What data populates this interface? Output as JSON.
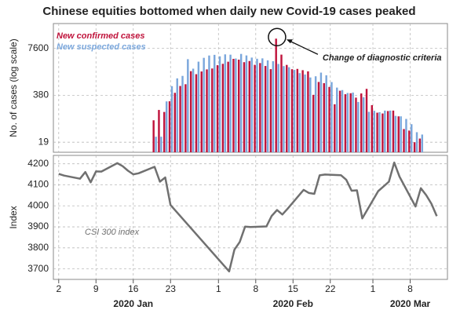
{
  "chart_data": [
    {
      "type": "bar",
      "title": "Chinese equities bottomed when daily new Covid-19 cases peaked",
      "ylabel": "No. of cases (log scale)",
      "annotation": "Change of diagnostic criteria",
      "annotation_x": "2020-02-12",
      "x": [
        "2020-01-20",
        "2020-01-21",
        "2020-01-22",
        "2020-01-23",
        "2020-01-24",
        "2020-01-25",
        "2020-01-26",
        "2020-01-27",
        "2020-01-28",
        "2020-01-29",
        "2020-01-30",
        "2020-01-31",
        "2020-02-01",
        "2020-02-02",
        "2020-02-03",
        "2020-02-04",
        "2020-02-05",
        "2020-02-06",
        "2020-02-07",
        "2020-02-08",
        "2020-02-09",
        "2020-02-10",
        "2020-02-11",
        "2020-02-12",
        "2020-02-13",
        "2020-02-14",
        "2020-02-15",
        "2020-02-16",
        "2020-02-17",
        "2020-02-18",
        "2020-02-19",
        "2020-02-20",
        "2020-02-21",
        "2020-02-22",
        "2020-02-23",
        "2020-02-24",
        "2020-02-25",
        "2020-02-26",
        "2020-02-27",
        "2020-02-28",
        "2020-02-29",
        "2020-03-01",
        "2020-03-02",
        "2020-03-03",
        "2020-03-04",
        "2020-03-05",
        "2020-03-06",
        "2020-03-07",
        "2020-03-08",
        "2020-03-09",
        "2020-03-10"
      ],
      "series": [
        {
          "name": "New confirmed cases",
          "color": "#c0143c",
          "values": [
            77,
            149,
            131,
            259,
            444,
            688,
            769,
            1771,
            1459,
            1737,
            1982,
            2102,
            2590,
            2829,
            3235,
            3887,
            3694,
            3143,
            3385,
            2652,
            2973,
            2467,
            2015,
            14108,
            5090,
            2641,
            2008,
            2048,
            1886,
            1749,
            391,
            889,
            823,
            648,
            214,
            508,
            406,
            433,
            327,
            427,
            573,
            202,
            125,
            119,
            139,
            143,
            99,
            44,
            40,
            19,
            24
          ]
        },
        {
          "name": "New suspected cases",
          "color": "#7ba7dc",
          "values": [
            27,
            27,
            257,
            680,
            1118,
            1309,
            3806,
            2077,
            3248,
            4148,
            4812,
            5019,
            4562,
            5173,
            5072,
            3971,
            5328,
            4833,
            4214,
            3916,
            4008,
            3536,
            3342,
            2807,
            2450,
            2277,
            1918,
            1563,
            1432,
            1185,
            1277,
            1614,
            1361,
            882,
            620,
            530,
            439,
            452,
            248,
            335,
            132,
            141,
            129,
            143,
            143,
            102,
            99,
            84,
            60,
            36,
            31
          ]
        }
      ],
      "xlim": [
        "2020-01-01",
        "2020-03-15"
      ],
      "ylim": [
        10,
        37000
      ],
      "log_scale": true,
      "yticks": [
        19,
        380,
        7600
      ],
      "grid": true,
      "legend": "upper left"
    },
    {
      "type": "line",
      "ylabel": "Index",
      "x": [
        "2020-01-02",
        "2020-01-03",
        "2020-01-06",
        "2020-01-07",
        "2020-01-08",
        "2020-01-09",
        "2020-01-10",
        "2020-01-13",
        "2020-01-14",
        "2020-01-15",
        "2020-01-16",
        "2020-01-17",
        "2020-01-20",
        "2020-01-21",
        "2020-01-22",
        "2020-01-23",
        "2020-02-03",
        "2020-02-04",
        "2020-02-05",
        "2020-02-06",
        "2020-02-07",
        "2020-02-10",
        "2020-02-11",
        "2020-02-12",
        "2020-02-13",
        "2020-02-14",
        "2020-02-17",
        "2020-02-18",
        "2020-02-19",
        "2020-02-20",
        "2020-02-21",
        "2020-02-24",
        "2020-02-25",
        "2020-02-26",
        "2020-02-27",
        "2020-02-28",
        "2020-03-02",
        "2020-03-03",
        "2020-03-04",
        "2020-03-05",
        "2020-03-06",
        "2020-03-09",
        "2020-03-10",
        "2020-03-11",
        "2020-03-12",
        "2020-03-13"
      ],
      "series": [
        {
          "name": "CSI 300 index",
          "color": "#707070",
          "values": [
            4152,
            4144,
            4129,
            4161,
            4112,
            4164,
            4163,
            4203,
            4189,
            4167,
            4150,
            4155,
            4186,
            4115,
            4135,
            4004,
            3688,
            3791,
            3828,
            3901,
            3899,
            3902,
            3952,
            3980,
            3959,
            3987,
            4076,
            4061,
            4057,
            4145,
            4149,
            4146,
            4124,
            4072,
            4074,
            3940,
            4070,
            4092,
            4115,
            4206,
            4139,
            3997,
            4084,
            4051,
            4010,
            3951
          ]
        }
      ],
      "xlim": [
        "2020-01-01",
        "2020-03-15"
      ],
      "ylim": [
        3650,
        4240
      ],
      "yticks": [
        3700,
        3800,
        3900,
        4000,
        4100,
        4200
      ],
      "xticks": [
        {
          "value": "2020-01-02",
          "label": "2"
        },
        {
          "value": "2020-01-09",
          "label": "9"
        },
        {
          "value": "2020-01-16",
          "label": "16"
        },
        {
          "value": "2020-01-23",
          "label": "23"
        },
        {
          "value": "2020-02-01",
          "label": "1"
        },
        {
          "value": "2020-02-08",
          "label": "8"
        },
        {
          "value": "2020-02-15",
          "label": "15"
        },
        {
          "value": "2020-02-22",
          "label": "22"
        },
        {
          "value": "2020-03-01",
          "label": "1"
        },
        {
          "value": "2020-03-08",
          "label": "8"
        }
      ],
      "month_labels": [
        {
          "value": "2020-01-16",
          "label": "2020 Jan"
        },
        {
          "value": "2020-02-15",
          "label": "2020 Feb"
        },
        {
          "value": "2020-03-08",
          "label": "2020 Mar"
        }
      ],
      "grid": true
    }
  ]
}
